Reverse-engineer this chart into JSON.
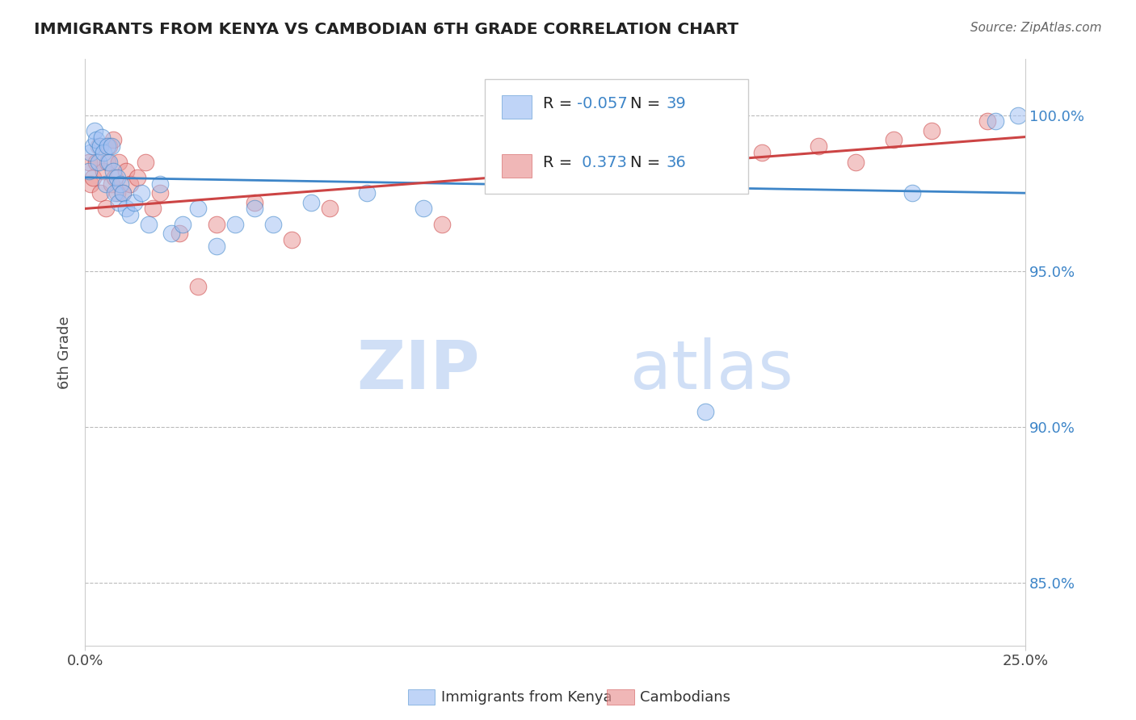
{
  "title": "IMMIGRANTS FROM KENYA VS CAMBODIAN 6TH GRADE CORRELATION CHART",
  "source": "Source: ZipAtlas.com",
  "ylabel": "6th Grade",
  "yticks": [
    85.0,
    90.0,
    95.0,
    100.0
  ],
  "xlim": [
    0.0,
    25.0
  ],
  "ylim": [
    83.0,
    101.8
  ],
  "blue_R": -0.057,
  "blue_N": 39,
  "pink_R": 0.373,
  "pink_N": 36,
  "watermark_zip": "ZIP",
  "watermark_atlas": "atlas",
  "legend_label_blue": "Immigrants from Kenya",
  "legend_label_pink": "Cambodians",
  "blue_color": "#a4c2f4",
  "pink_color": "#ea9999",
  "blue_line_color": "#3d85c8",
  "pink_line_color": "#cc4444",
  "blue_scatter_x": [
    0.1,
    0.15,
    0.2,
    0.25,
    0.3,
    0.35,
    0.4,
    0.45,
    0.5,
    0.55,
    0.6,
    0.65,
    0.7,
    0.75,
    0.8,
    0.85,
    0.9,
    0.95,
    1.0,
    1.1,
    1.2,
    1.3,
    1.5,
    1.7,
    2.0,
    2.3,
    2.6,
    3.0,
    3.5,
    4.0,
    4.5,
    5.0,
    6.0,
    7.5,
    9.0,
    16.5,
    22.0,
    24.2,
    24.8
  ],
  "blue_scatter_y": [
    98.2,
    98.8,
    99.0,
    99.5,
    99.2,
    98.5,
    99.0,
    99.3,
    98.8,
    97.8,
    99.0,
    98.5,
    99.0,
    98.2,
    97.5,
    98.0,
    97.2,
    97.8,
    97.5,
    97.0,
    96.8,
    97.2,
    97.5,
    96.5,
    97.8,
    96.2,
    96.5,
    97.0,
    95.8,
    96.5,
    97.0,
    96.5,
    97.2,
    97.5,
    97.0,
    90.5,
    97.5,
    99.8,
    100.0
  ],
  "pink_scatter_x": [
    0.1,
    0.15,
    0.2,
    0.3,
    0.35,
    0.4,
    0.5,
    0.55,
    0.6,
    0.65,
    0.7,
    0.75,
    0.8,
    0.85,
    0.9,
    1.0,
    1.1,
    1.2,
    1.4,
    1.6,
    1.8,
    2.0,
    2.5,
    3.0,
    3.5,
    4.5,
    5.5,
    6.5,
    9.5,
    17.0,
    18.0,
    19.5,
    20.5,
    21.5,
    22.5,
    24.0
  ],
  "pink_scatter_y": [
    98.5,
    97.8,
    98.0,
    98.5,
    99.0,
    97.5,
    98.2,
    97.0,
    98.5,
    99.0,
    97.8,
    99.2,
    98.0,
    97.5,
    98.5,
    97.5,
    98.2,
    97.8,
    98.0,
    98.5,
    97.0,
    97.5,
    96.2,
    94.5,
    96.5,
    97.2,
    96.0,
    97.0,
    96.5,
    99.5,
    98.8,
    99.0,
    98.5,
    99.2,
    99.5,
    99.8
  ],
  "blue_line_x": [
    0.0,
    25.0
  ],
  "blue_line_y": [
    98.0,
    97.5
  ],
  "pink_line_x": [
    0.0,
    25.0
  ],
  "pink_line_y": [
    97.0,
    99.3
  ]
}
